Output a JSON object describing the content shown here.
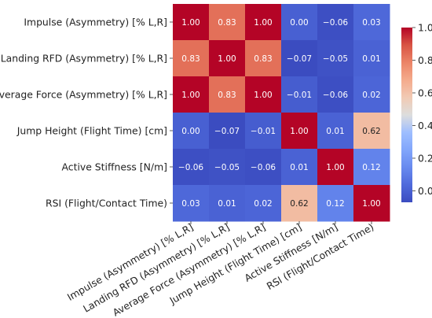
{
  "chart_data": {
    "type": "heatmap",
    "title": "",
    "labels": [
      "Impulse (Asymmetry) [% L,R]",
      "Landing RFD (Asymmetry) [% L,R]",
      "Average Force (Asymmetry) [% L,R]",
      "Jump Height (Flight Time) [cm]",
      "Active Stiffness [N/m]",
      "RSI (Flight/Contact Time)"
    ],
    "values": [
      [
        1.0,
        0.83,
        1.0,
        0.0,
        -0.06,
        0.03
      ],
      [
        0.83,
        1.0,
        0.83,
        -0.07,
        -0.05,
        0.01
      ],
      [
        1.0,
        0.83,
        1.0,
        -0.01,
        -0.06,
        0.02
      ],
      [
        0.0,
        -0.07,
        -0.01,
        1.0,
        0.01,
        0.62
      ],
      [
        -0.06,
        -0.05,
        -0.06,
        0.01,
        1.0,
        0.12
      ],
      [
        0.03,
        0.01,
        0.02,
        0.62,
        0.12,
        1.0
      ]
    ],
    "value_labels": [
      [
        "1.00",
        "0.83",
        "1.00",
        "0.00",
        "−0.06",
        "0.03"
      ],
      [
        "0.83",
        "1.00",
        "0.83",
        "−0.07",
        "−0.05",
        "0.01"
      ],
      [
        "1.00",
        "0.83",
        "1.00",
        "−0.01",
        "−0.06",
        "0.02"
      ],
      [
        "0.00",
        "−0.07",
        "−0.01",
        "1.00",
        "0.01",
        "0.62"
      ],
      [
        "−0.06",
        "−0.05",
        "−0.06",
        "0.01",
        "1.00",
        "0.12"
      ],
      [
        "0.03",
        "0.01",
        "0.02",
        "0.62",
        "0.12",
        "1.00"
      ]
    ],
    "colorscale": "coolwarm",
    "colorbar": {
      "range": [
        -0.07,
        1.0
      ],
      "ticks": [
        0.0,
        0.2,
        0.4,
        0.6,
        0.8,
        1.0
      ],
      "tick_labels": [
        "0.0",
        "0.2",
        "0.4",
        "0.6",
        "0.8",
        "1.0"
      ]
    }
  }
}
